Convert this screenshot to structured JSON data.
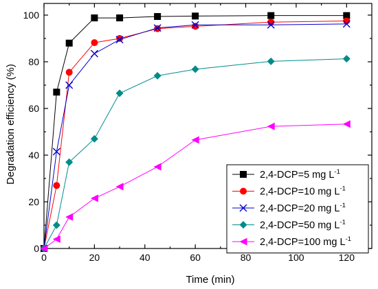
{
  "chart_data": {
    "type": "line",
    "xlabel": "Time (min)",
    "ylabel": "Degradation efficiency (%)",
    "xlim": [
      0,
      130
    ],
    "ylim": [
      0,
      105
    ],
    "xticks": [
      0,
      20,
      40,
      60,
      80,
      100,
      120
    ],
    "yticks": [
      0,
      20,
      40,
      60,
      80,
      100
    ],
    "grid": false,
    "legend_position": "bottom-right",
    "x": [
      0,
      5,
      10,
      20,
      30,
      45,
      60,
      90,
      120
    ],
    "series": [
      {
        "name_main": "2,4-DCP=5 mg L",
        "name_sup": "-1",
        "color": "#000000",
        "line_color": "#000000",
        "marker": "square",
        "values": [
          0,
          67,
          88,
          98.8,
          98.8,
          99.4,
          99.6,
          99.8,
          99.8
        ]
      },
      {
        "name_main": "2,4-DCP=10 mg L",
        "name_sup": "-1",
        "color": "#ff0000",
        "line_color": "#ff0000",
        "marker": "circle",
        "values": [
          0,
          27,
          75.5,
          88.2,
          90,
          94.2,
          95.2,
          97,
          97.5
        ]
      },
      {
        "name_main": "2,4-DCP=20 mg L",
        "name_sup": "-1",
        "color": "#0000cc",
        "line_color": "#0000cc",
        "marker": "x",
        "values": [
          0,
          41.5,
          70,
          83.5,
          89.5,
          94.5,
          95.8,
          95.8,
          96.2
        ]
      },
      {
        "name_main": "2,4-DCP=50 mg L",
        "name_sup": "-1",
        "color": "#008b8b",
        "line_color": "#008b8b",
        "marker": "diamond",
        "values": [
          0,
          10,
          37,
          47,
          66.5,
          74,
          76.8,
          80.2,
          81.3
        ]
      },
      {
        "name_main": "2,4-DCP=100 mg L",
        "name_sup": "-1",
        "color": "#ff00ff",
        "line_color": "#ff00ff",
        "marker": "triangle-left",
        "values": [
          0,
          4,
          13.5,
          21.5,
          26.5,
          35,
          46.5,
          52.3,
          53.3
        ]
      }
    ]
  }
}
